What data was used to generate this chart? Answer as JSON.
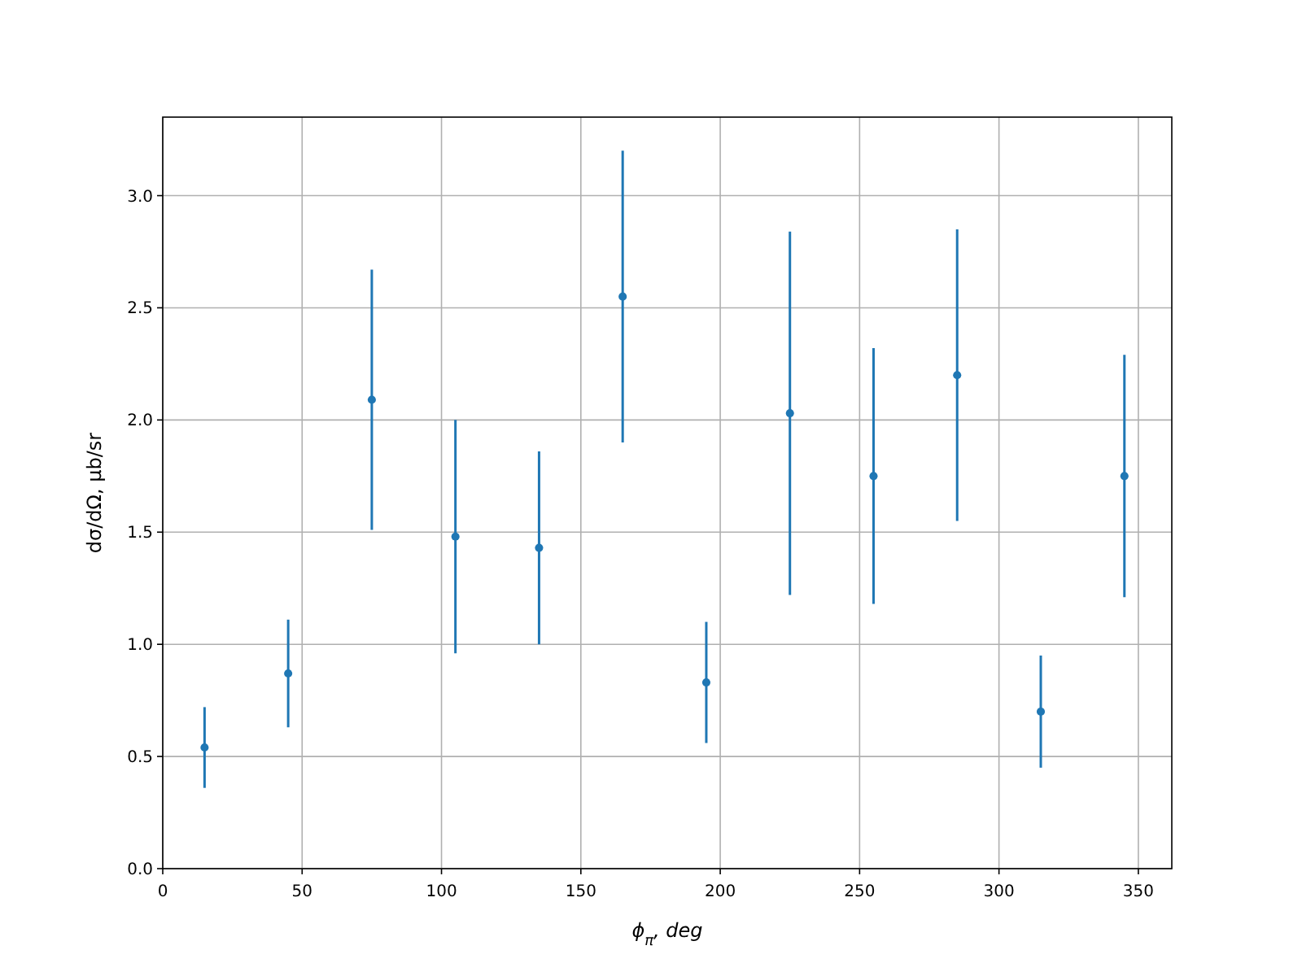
{
  "chart_data": {
    "type": "scatter",
    "xlabel": "ϕ$_{π}$, deg",
    "ylabel": "dσ/dΩ, μb/sr",
    "x": [
      15,
      45,
      75,
      105,
      135,
      165,
      195,
      225,
      255,
      285,
      315,
      345
    ],
    "series": [
      {
        "color": "#1f77b4",
        "values": [
          0.54,
          0.87,
          2.09,
          1.48,
          1.43,
          2.55,
          0.83,
          2.03,
          1.75,
          2.2,
          0.7,
          1.75
        ],
        "errors": [
          0.18,
          0.24,
          0.58,
          0.52,
          0.43,
          0.65,
          0.27,
          0.81,
          0.57,
          0.65,
          0.25,
          0.54
        ]
      }
    ],
    "xlim": [
      0,
      362
    ],
    "ylim": [
      0,
      3.35
    ],
    "xticks": [
      0,
      50,
      100,
      150,
      200,
      250,
      300,
      350
    ],
    "yticks": [
      {
        "value": 0,
        "label": "0.0"
      },
      {
        "value": 0.5,
        "label": "0.5"
      },
      {
        "value": 1,
        "label": "1.0"
      },
      {
        "value": 1.5,
        "label": "1.5"
      },
      {
        "value": 2,
        "label": "2.0"
      },
      {
        "value": 2.5,
        "label": "2.5"
      },
      {
        "value": 3,
        "label": "3.0"
      }
    ],
    "grid": true,
    "marker": "circle"
  }
}
